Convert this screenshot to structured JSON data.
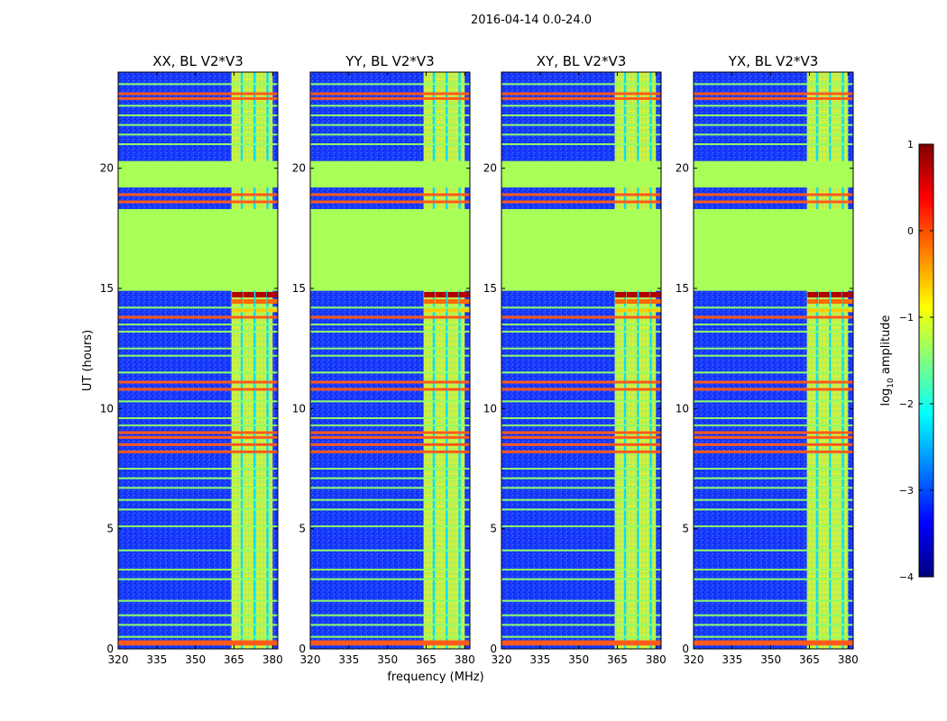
{
  "figure": {
    "suptitle": "2016-04-14 0.0-24.0"
  },
  "chart_data": {
    "type": "heatmap",
    "xlabel": "frequency (MHz)",
    "ylabel": "UT (hours)",
    "xlim": [
      320,
      382
    ],
    "ylim": [
      0,
      24
    ],
    "x_ticks": [
      320,
      335,
      350,
      365,
      380
    ],
    "y_ticks": [
      0,
      5,
      10,
      15,
      20
    ],
    "colorscale": "jet",
    "panels": [
      {
        "title": "XX, BL V2*V3",
        "band_start": 364
      },
      {
        "title": "YY, BL V2*V3",
        "band_start": 364
      },
      {
        "title": "XY, BL V2*V3",
        "band_start": 364
      },
      {
        "title": "YX, BL V2*V3",
        "band_start": 364
      }
    ],
    "rfi_band": {
      "start_mhz": 364,
      "end_mhz": 380,
      "channel_gaps_mhz": [
        368,
        373,
        378
      ]
    },
    "flagged_blocks_hours": [
      [
        14.9,
        18.3
      ],
      [
        19.2,
        20.3
      ]
    ],
    "flagged_value": -1.3,
    "background_value": -2.8,
    "hot_horizontal_lines_hours": [
      0.2,
      0.3,
      8.2,
      8.5,
      8.8,
      9.0,
      10.8,
      11.1,
      13.8,
      18.6,
      18.9,
      22.9,
      23.1
    ],
    "warm_horizontal_lines_hours": [
      0.5,
      1.0,
      1.4,
      2.0,
      2.9,
      3.3,
      4.1,
      5.1,
      5.8,
      6.2,
      6.7,
      7.1,
      7.5,
      9.3,
      9.6,
      10.3,
      11.5,
      12.2,
      12.5,
      13.2,
      13.5,
      14.2,
      21.0,
      21.4,
      21.8,
      22.2,
      22.6,
      23.5
    ],
    "colorbar": {
      "label": "log10 amplitude",
      "label_main": "log",
      "label_sub": "10",
      "label_rest": " amplitude",
      "vmin": -4,
      "vmax": 1,
      "ticks": [
        1,
        0,
        -1,
        -2,
        -3,
        -4
      ],
      "tick_labels": [
        "1",
        "0",
        "−1",
        "−2",
        "−3",
        "−4"
      ]
    }
  }
}
